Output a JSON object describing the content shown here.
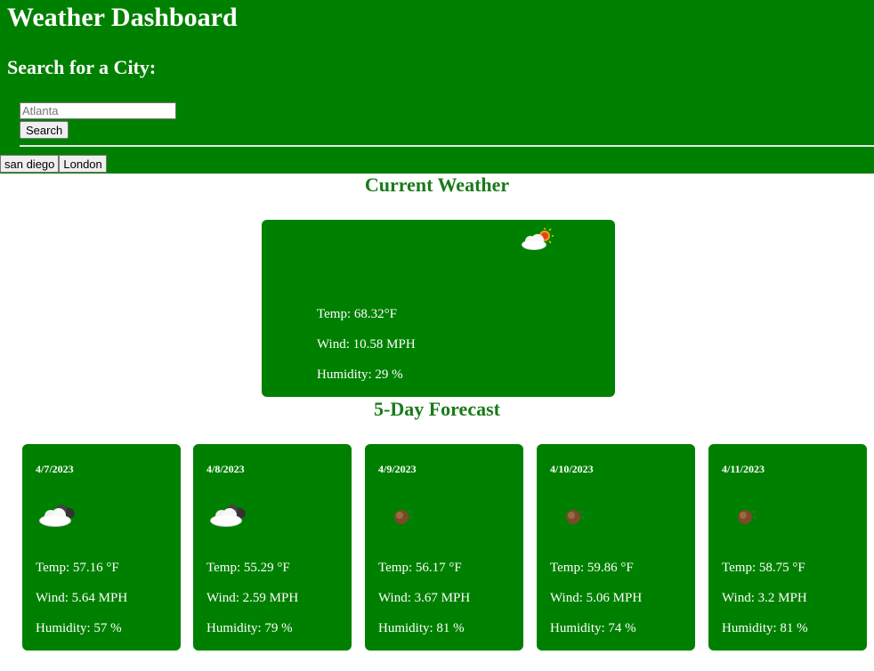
{
  "header": {
    "title": "Weather Dashboard",
    "search_heading": "Search for a City:",
    "search_placeholder": "Atlanta",
    "search_button": "Search",
    "history": [
      "san diego",
      "London"
    ]
  },
  "current": {
    "section_title": "Current Weather",
    "icon": "partly-cloudy-day-icon",
    "temp": "Temp: 68.32°F",
    "wind": "Wind: 10.58 MPH",
    "humidity": "Humidity: 29 %"
  },
  "forecast": {
    "section_title": "5-Day Forecast",
    "days": [
      {
        "date": "4/7/2023",
        "icon": "partly-cloudy-night-icon",
        "temp": "Temp: 57.16 °F",
        "wind": "Wind: 5.64 MPH",
        "humidity": "Humidity: 57 %"
      },
      {
        "date": "4/8/2023",
        "icon": "partly-cloudy-night-icon",
        "temp": "Temp: 55.29 °F",
        "wind": "Wind: 2.59 MPH",
        "humidity": "Humidity: 79 %"
      },
      {
        "date": "4/9/2023",
        "icon": "weather-icon",
        "temp": "Temp: 56.17 °F",
        "wind": "Wind: 3.67 MPH",
        "humidity": "Humidity: 81 %"
      },
      {
        "date": "4/10/2023",
        "icon": "weather-icon",
        "temp": "Temp: 59.86 °F",
        "wind": "Wind: 5.06 MPH",
        "humidity": "Humidity: 74 %"
      },
      {
        "date": "4/11/2023",
        "icon": "weather-icon",
        "temp": "Temp: 58.75 °F",
        "wind": "Wind: 3.2 MPH",
        "humidity": "Humidity: 81 %"
      }
    ]
  },
  "colors": {
    "primary": "#008000",
    "heading": "#1a7a1a"
  }
}
